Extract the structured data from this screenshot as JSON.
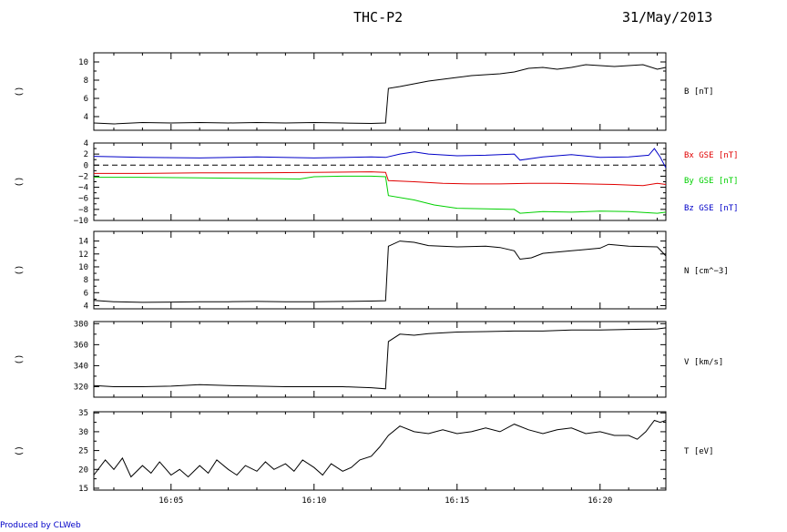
{
  "header": {
    "title": "THC-P2",
    "date": "31/May/2013"
  },
  "footer": {
    "credit": "Produced by CLWeb"
  },
  "colors": {
    "black": "#000000",
    "red": "#e00000",
    "green": "#00d000",
    "blue": "#0000c8"
  },
  "chart_data": {
    "type": "line",
    "x_ticks": [
      "16:05",
      "16:10",
      "16:15",
      "16:20"
    ],
    "x_range_minutes": [
      2.3,
      22.3
    ],
    "panels": [
      {
        "id": "b",
        "ylabel": "()",
        "ylim": [
          2.5,
          11.0
        ],
        "ticks": [
          4,
          6,
          8,
          10
        ],
        "tick_labels": [
          "4",
          "6",
          "8",
          "10"
        ],
        "zero_line": false,
        "series": [
          {
            "name": "B [nT]",
            "color": "#000000",
            "points": [
              [
                2.3,
                3.3
              ],
              [
                3.0,
                3.2
              ],
              [
                4.0,
                3.35
              ],
              [
                5.0,
                3.3
              ],
              [
                6.0,
                3.35
              ],
              [
                7.0,
                3.3
              ],
              [
                8.0,
                3.35
              ],
              [
                9.0,
                3.3
              ],
              [
                10.0,
                3.35
              ],
              [
                11.0,
                3.3
              ],
              [
                12.0,
                3.25
              ],
              [
                12.5,
                3.3
              ],
              [
                12.6,
                7.1
              ],
              [
                13.0,
                7.3
              ],
              [
                13.5,
                7.6
              ],
              [
                14.0,
                7.9
              ],
              [
                14.5,
                8.1
              ],
              [
                15.0,
                8.3
              ],
              [
                15.5,
                8.5
              ],
              [
                16.0,
                8.6
              ],
              [
                16.5,
                8.7
              ],
              [
                17.0,
                8.9
              ],
              [
                17.5,
                9.3
              ],
              [
                18.0,
                9.4
              ],
              [
                18.5,
                9.2
              ],
              [
                19.0,
                9.4
              ],
              [
                19.5,
                9.7
              ],
              [
                20.0,
                9.6
              ],
              [
                20.5,
                9.5
              ],
              [
                21.0,
                9.6
              ],
              [
                21.5,
                9.7
              ],
              [
                22.0,
                9.2
              ],
              [
                22.3,
                9.4
              ]
            ]
          }
        ]
      },
      {
        "id": "bxyz",
        "ylabel": "()",
        "ylim": [
          -10,
          4
        ],
        "ticks": [
          -10,
          -8,
          -6,
          -4,
          -2,
          0,
          2,
          4
        ],
        "tick_labels": [
          "−10",
          "−8",
          "−6",
          "−4",
          "−2",
          "0",
          "2",
          "4"
        ],
        "zero_line": true,
        "series": [
          {
            "name": "Bx GSE [nT]",
            "color": "#e00000",
            "points": [
              [
                2.3,
                -1.5
              ],
              [
                4.0,
                -1.5
              ],
              [
                6.0,
                -1.4
              ],
              [
                8.0,
                -1.4
              ],
              [
                10.0,
                -1.3
              ],
              [
                12.0,
                -1.2
              ],
              [
                12.5,
                -1.3
              ],
              [
                12.6,
                -2.8
              ],
              [
                13.5,
                -3.0
              ],
              [
                14.5,
                -3.3
              ],
              [
                15.5,
                -3.4
              ],
              [
                16.5,
                -3.4
              ],
              [
                17.5,
                -3.3
              ],
              [
                18.5,
                -3.3
              ],
              [
                19.5,
                -3.4
              ],
              [
                20.5,
                -3.5
              ],
              [
                21.5,
                -3.7
              ],
              [
                22.0,
                -3.3
              ],
              [
                22.3,
                -3.5
              ]
            ]
          },
          {
            "name": "By GSE [nT]",
            "color": "#00d000",
            "points": [
              [
                2.3,
                -2.2
              ],
              [
                4.0,
                -2.2
              ],
              [
                6.0,
                -2.3
              ],
              [
                8.0,
                -2.4
              ],
              [
                9.5,
                -2.5
              ],
              [
                10.0,
                -2.1
              ],
              [
                11.0,
                -2.0
              ],
              [
                12.0,
                -2.0
              ],
              [
                12.5,
                -2.1
              ],
              [
                12.6,
                -5.5
              ],
              [
                13.5,
                -6.3
              ],
              [
                14.2,
                -7.2
              ],
              [
                15.0,
                -7.8
              ],
              [
                16.0,
                -7.9
              ],
              [
                17.0,
                -8.0
              ],
              [
                17.2,
                -8.7
              ],
              [
                18.0,
                -8.4
              ],
              [
                19.0,
                -8.5
              ],
              [
                20.0,
                -8.3
              ],
              [
                21.0,
                -8.4
              ],
              [
                22.0,
                -8.7
              ],
              [
                22.3,
                -8.5
              ]
            ]
          },
          {
            "name": "Bz GSE [nT]",
            "color": "#0000c8",
            "points": [
              [
                2.3,
                1.6
              ],
              [
                4.0,
                1.4
              ],
              [
                6.0,
                1.3
              ],
              [
                8.0,
                1.5
              ],
              [
                10.0,
                1.3
              ],
              [
                12.0,
                1.5
              ],
              [
                12.5,
                1.4
              ],
              [
                13.0,
                2.0
              ],
              [
                13.5,
                2.4
              ],
              [
                14.0,
                2.0
              ],
              [
                15.0,
                1.7
              ],
              [
                16.0,
                1.8
              ],
              [
                17.0,
                2.0
              ],
              [
                17.2,
                0.9
              ],
              [
                18.0,
                1.5
              ],
              [
                19.0,
                1.9
              ],
              [
                20.0,
                1.4
              ],
              [
                21.0,
                1.5
              ],
              [
                21.7,
                1.8
              ],
              [
                21.9,
                3.0
              ],
              [
                22.1,
                1.5
              ],
              [
                22.3,
                -0.5
              ]
            ]
          }
        ]
      },
      {
        "id": "n",
        "ylabel": "()",
        "ylim": [
          3.5,
          15.5
        ],
        "ticks": [
          4,
          6,
          8,
          10,
          12,
          14
        ],
        "tick_labels": [
          "4",
          "6",
          "8",
          "10",
          "12",
          "14"
        ],
        "zero_line": false,
        "series": [
          {
            "name": "N [cm^-3]",
            "label": "N [cm^−3]",
            "color": "#000000",
            "points": [
              [
                2.3,
                4.8
              ],
              [
                3.0,
                4.6
              ],
              [
                4.0,
                4.5
              ],
              [
                5.0,
                4.55
              ],
              [
                6.0,
                4.6
              ],
              [
                7.0,
                4.6
              ],
              [
                8.0,
                4.65
              ],
              [
                9.0,
                4.6
              ],
              [
                10.0,
                4.6
              ],
              [
                11.0,
                4.65
              ],
              [
                12.0,
                4.7
              ],
              [
                12.5,
                4.75
              ],
              [
                12.6,
                13.2
              ],
              [
                13.0,
                14.0
              ],
              [
                13.5,
                13.8
              ],
              [
                14.0,
                13.3
              ],
              [
                15.0,
                13.1
              ],
              [
                16.0,
                13.2
              ],
              [
                16.5,
                13.0
              ],
              [
                17.0,
                12.5
              ],
              [
                17.2,
                11.2
              ],
              [
                17.6,
                11.4
              ],
              [
                18.0,
                12.1
              ],
              [
                19.0,
                12.5
              ],
              [
                20.0,
                12.9
              ],
              [
                20.3,
                13.5
              ],
              [
                21.0,
                13.2
              ],
              [
                22.0,
                13.1
              ],
              [
                22.3,
                11.7
              ]
            ]
          }
        ]
      },
      {
        "id": "v",
        "ylabel": "()",
        "ylim": [
          310,
          382
        ],
        "ticks": [
          320,
          340,
          360,
          380
        ],
        "tick_labels": [
          "320",
          "340",
          "360",
          "380"
        ],
        "zero_line": false,
        "series": [
          {
            "name": "V [km/s]",
            "color": "#000000",
            "points": [
              [
                2.3,
                321
              ],
              [
                3.0,
                320
              ],
              [
                4.0,
                320
              ],
              [
                5.0,
                320.5
              ],
              [
                6.0,
                322
              ],
              [
                7.0,
                321
              ],
              [
                8.0,
                320.5
              ],
              [
                9.0,
                320
              ],
              [
                10.0,
                320
              ],
              [
                11.0,
                320
              ],
              [
                12.0,
                319
              ],
              [
                12.5,
                318
              ],
              [
                12.6,
                363
              ],
              [
                13.0,
                370
              ],
              [
                13.5,
                369
              ],
              [
                14.0,
                370.5
              ],
              [
                15.0,
                372
              ],
              [
                16.0,
                372.5
              ],
              [
                17.0,
                373
              ],
              [
                18.0,
                373
              ],
              [
                19.0,
                374
              ],
              [
                20.0,
                374
              ],
              [
                21.0,
                374.5
              ],
              [
                22.0,
                375
              ],
              [
                22.3,
                376
              ]
            ]
          }
        ]
      },
      {
        "id": "t",
        "ylabel": "()",
        "ylim": [
          14.5,
          35.3
        ],
        "ticks": [
          15,
          20,
          25,
          30,
          35
        ],
        "tick_labels": [
          "15",
          "20",
          "25",
          "30",
          "35"
        ],
        "zero_line": false,
        "series": [
          {
            "name": "T [eV]",
            "color": "#000000",
            "points": [
              [
                2.3,
                18.5
              ],
              [
                2.7,
                22.5
              ],
              [
                3.0,
                20.0
              ],
              [
                3.3,
                23.0
              ],
              [
                3.6,
                18.0
              ],
              [
                4.0,
                21.0
              ],
              [
                4.3,
                19.0
              ],
              [
                4.6,
                22.0
              ],
              [
                5.0,
                18.5
              ],
              [
                5.3,
                20.0
              ],
              [
                5.6,
                18.0
              ],
              [
                6.0,
                21.0
              ],
              [
                6.3,
                19.0
              ],
              [
                6.6,
                22.5
              ],
              [
                7.0,
                20.0
              ],
              [
                7.3,
                18.5
              ],
              [
                7.6,
                21.0
              ],
              [
                8.0,
                19.5
              ],
              [
                8.3,
                22.0
              ],
              [
                8.6,
                20.0
              ],
              [
                9.0,
                21.5
              ],
              [
                9.3,
                19.5
              ],
              [
                9.6,
                22.5
              ],
              [
                10.0,
                20.5
              ],
              [
                10.3,
                18.5
              ],
              [
                10.6,
                21.5
              ],
              [
                11.0,
                19.5
              ],
              [
                11.3,
                20.5
              ],
              [
                11.6,
                22.5
              ],
              [
                12.0,
                23.5
              ],
              [
                12.3,
                26.0
              ],
              [
                12.6,
                29.0
              ],
              [
                13.0,
                31.5
              ],
              [
                13.5,
                30.0
              ],
              [
                14.0,
                29.5
              ],
              [
                14.5,
                30.5
              ],
              [
                15.0,
                29.5
              ],
              [
                15.5,
                30.0
              ],
              [
                16.0,
                31.0
              ],
              [
                16.5,
                30.0
              ],
              [
                17.0,
                32.0
              ],
              [
                17.5,
                30.5
              ],
              [
                18.0,
                29.5
              ],
              [
                18.5,
                30.5
              ],
              [
                19.0,
                31.0
              ],
              [
                19.5,
                29.5
              ],
              [
                20.0,
                30.0
              ],
              [
                20.5,
                29.0
              ],
              [
                21.0,
                29.0
              ],
              [
                21.3,
                28.0
              ],
              [
                21.6,
                30.0
              ],
              [
                21.9,
                33.0
              ],
              [
                22.1,
                32.5
              ],
              [
                22.3,
                33.0
              ]
            ]
          }
        ]
      }
    ]
  }
}
